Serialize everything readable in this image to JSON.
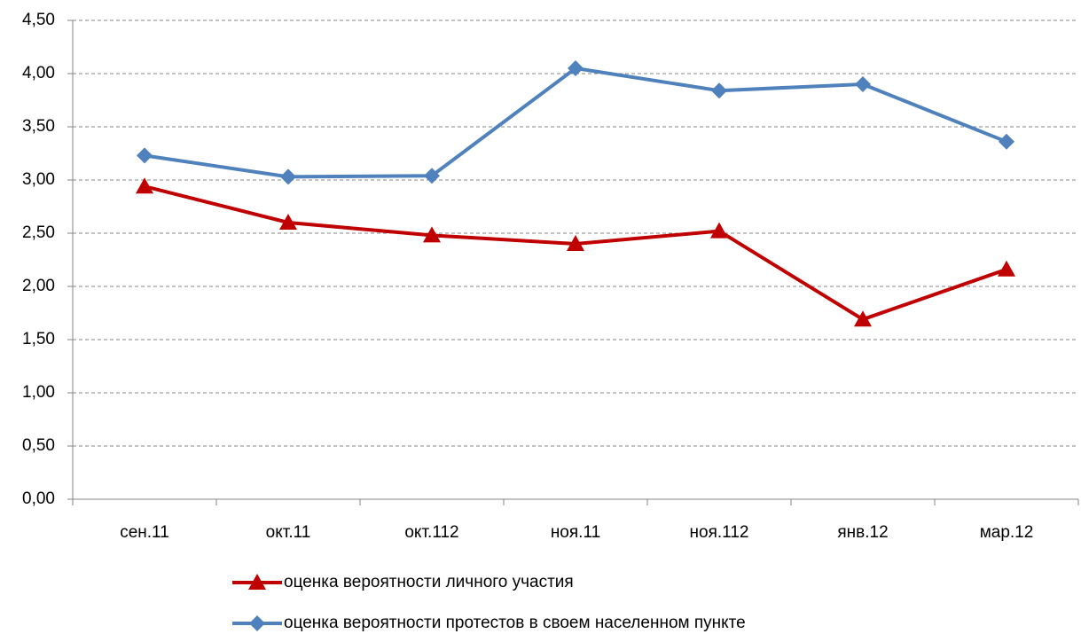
{
  "chart_data": {
    "type": "line",
    "categories": [
      "сен.11",
      "окт.11",
      "окт.112",
      "ноя.11",
      "ноя.112",
      "янв.12",
      "мар.12"
    ],
    "series": [
      {
        "name": "оценка вероятности личного участия",
        "color": "#c00000",
        "marker": "triangle",
        "values": [
          2.94,
          2.6,
          2.48,
          2.4,
          2.52,
          1.69,
          2.16
        ]
      },
      {
        "name": "оценка вероятности протестов в своем населенном пункте",
        "color": "#4f81bd",
        "marker": "diamond",
        "values": [
          3.23,
          3.03,
          3.04,
          4.05,
          3.84,
          3.9,
          3.36
        ]
      }
    ],
    "ylim": [
      0,
      4.5
    ],
    "yticks": [
      {
        "value": 0,
        "label": "0,00"
      },
      {
        "value": 0.5,
        "label": "0,50"
      },
      {
        "value": 1,
        "label": "1,00"
      },
      {
        "value": 1.5,
        "label": "1,50"
      },
      {
        "value": 2,
        "label": "2,00"
      },
      {
        "value": 2.5,
        "label": "2,50"
      },
      {
        "value": 3,
        "label": "3,00"
      },
      {
        "value": 3.5,
        "label": "3,50"
      },
      {
        "value": 4,
        "label": "4,00"
      },
      {
        "value": 4.5,
        "label": "4,50"
      }
    ],
    "grid": true,
    "legend": "bottom"
  }
}
